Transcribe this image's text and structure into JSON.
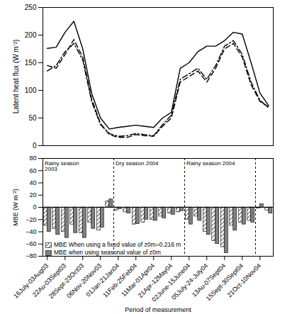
{
  "chart_data": [
    {
      "type": "line",
      "ylabel": "Latent heat flux (W m⁻²)",
      "categories": [
        "16July-03Aug03",
        null,
        "22Au-03Sept03",
        null,
        "28Sept-23Oct03",
        null,
        "06Nov-20Nov03",
        null,
        "01Jan-21Jan04",
        null,
        "11Feb-25Feb04",
        null,
        "11Mar-01Apr04",
        null,
        "21Apr-12May04",
        null,
        "02June-15June04",
        null,
        "05July-24-July04",
        null,
        "13Au-07Sept04",
        null,
        "15Sept-30Sept04",
        null,
        "21Oct-10Nov04",
        null
      ],
      "series": [
        {
          "color": "#000000",
          "line_style": "solid",
          "values": [
            176,
            178,
            205,
            225,
            175,
            95,
            50,
            30,
            33,
            35,
            37,
            35,
            33,
            50,
            60,
            140,
            150,
            170,
            180,
            180,
            190,
            205,
            202,
            150,
            95,
            72
          ]
        },
        {
          "color": "#000000",
          "line_style": "dashed",
          "values": [
            145,
            140,
            165,
            192,
            160,
            85,
            40,
            20,
            15,
            15,
            20,
            18,
            17,
            35,
            50,
            115,
            125,
            135,
            115,
            140,
            175,
            185,
            160,
            110,
            80,
            70
          ]
        },
        {
          "color": "#000000",
          "line_style": "dashdot",
          "values": [
            135,
            145,
            170,
            185,
            155,
            80,
            38,
            22,
            17,
            18,
            22,
            20,
            18,
            38,
            55,
            120,
            130,
            140,
            120,
            145,
            180,
            190,
            165,
            115,
            82,
            68
          ]
        }
      ],
      "ylim": [
        0,
        250
      ],
      "yticks": [
        0,
        50,
        100,
        150,
        200,
        250
      ],
      "tick_labels": "y",
      "grid": false
    },
    {
      "type": "bar",
      "ylabel": "MBE (W m⁻²)",
      "xlabel": "Period of measurement",
      "categories": [
        "16July-03Aug03",
        null,
        "22Au-03Sept03",
        null,
        "28Sept-23Oct03",
        null,
        "06Nov-20Nov03",
        null,
        "01Jan-21Jan04",
        null,
        "11Feb-25Feb04",
        null,
        "11Mar-01Apr04",
        null,
        "21Apr-12May04",
        null,
        "02June-15June04",
        null,
        "05July-24-July04",
        null,
        "13Au-07Sept04",
        null,
        "15Sept-30Sept04",
        null,
        "21Oct-10Nov04",
        null
      ],
      "series": [
        {
          "name": "MBE When using a fixed value of z0m=0.216 m",
          "color": "#303030",
          "line_style": "hatched",
          "values": [
            -30,
            -35,
            -40,
            -28,
            -42,
            -25,
            -38,
            10,
            -5,
            -8,
            -28,
            -25,
            -20,
            -15,
            -10,
            -8,
            -20,
            -15,
            -40,
            -55,
            -65,
            -30,
            -25,
            -22,
            -2,
            -5
          ]
        },
        {
          "name": "MBE when using seasonal value of z0m",
          "color": "#808080",
          "line_style": "solid",
          "values": [
            -40,
            -45,
            -50,
            -42,
            -50,
            -35,
            -33,
            13,
            -3,
            -10,
            -27,
            -20,
            -22,
            -18,
            -12,
            -6,
            -28,
            -22,
            -45,
            -60,
            -75,
            -38,
            -28,
            -25,
            5,
            -10
          ]
        }
      ],
      "annotations": [
        {
          "text": "Rainy season\n2003",
          "start": 0,
          "end": 7
        },
        {
          "text": "Dry season 2004",
          "start": 8,
          "end": 15
        },
        {
          "text": "Rainy season 2004",
          "start": 16,
          "end": 23
        }
      ],
      "ylim": [
        -80,
        80
      ],
      "yticks": [
        -80,
        -60,
        -40,
        -20,
        0,
        20,
        40,
        60,
        80
      ],
      "legend": "bottom-left",
      "grid": false
    }
  ]
}
